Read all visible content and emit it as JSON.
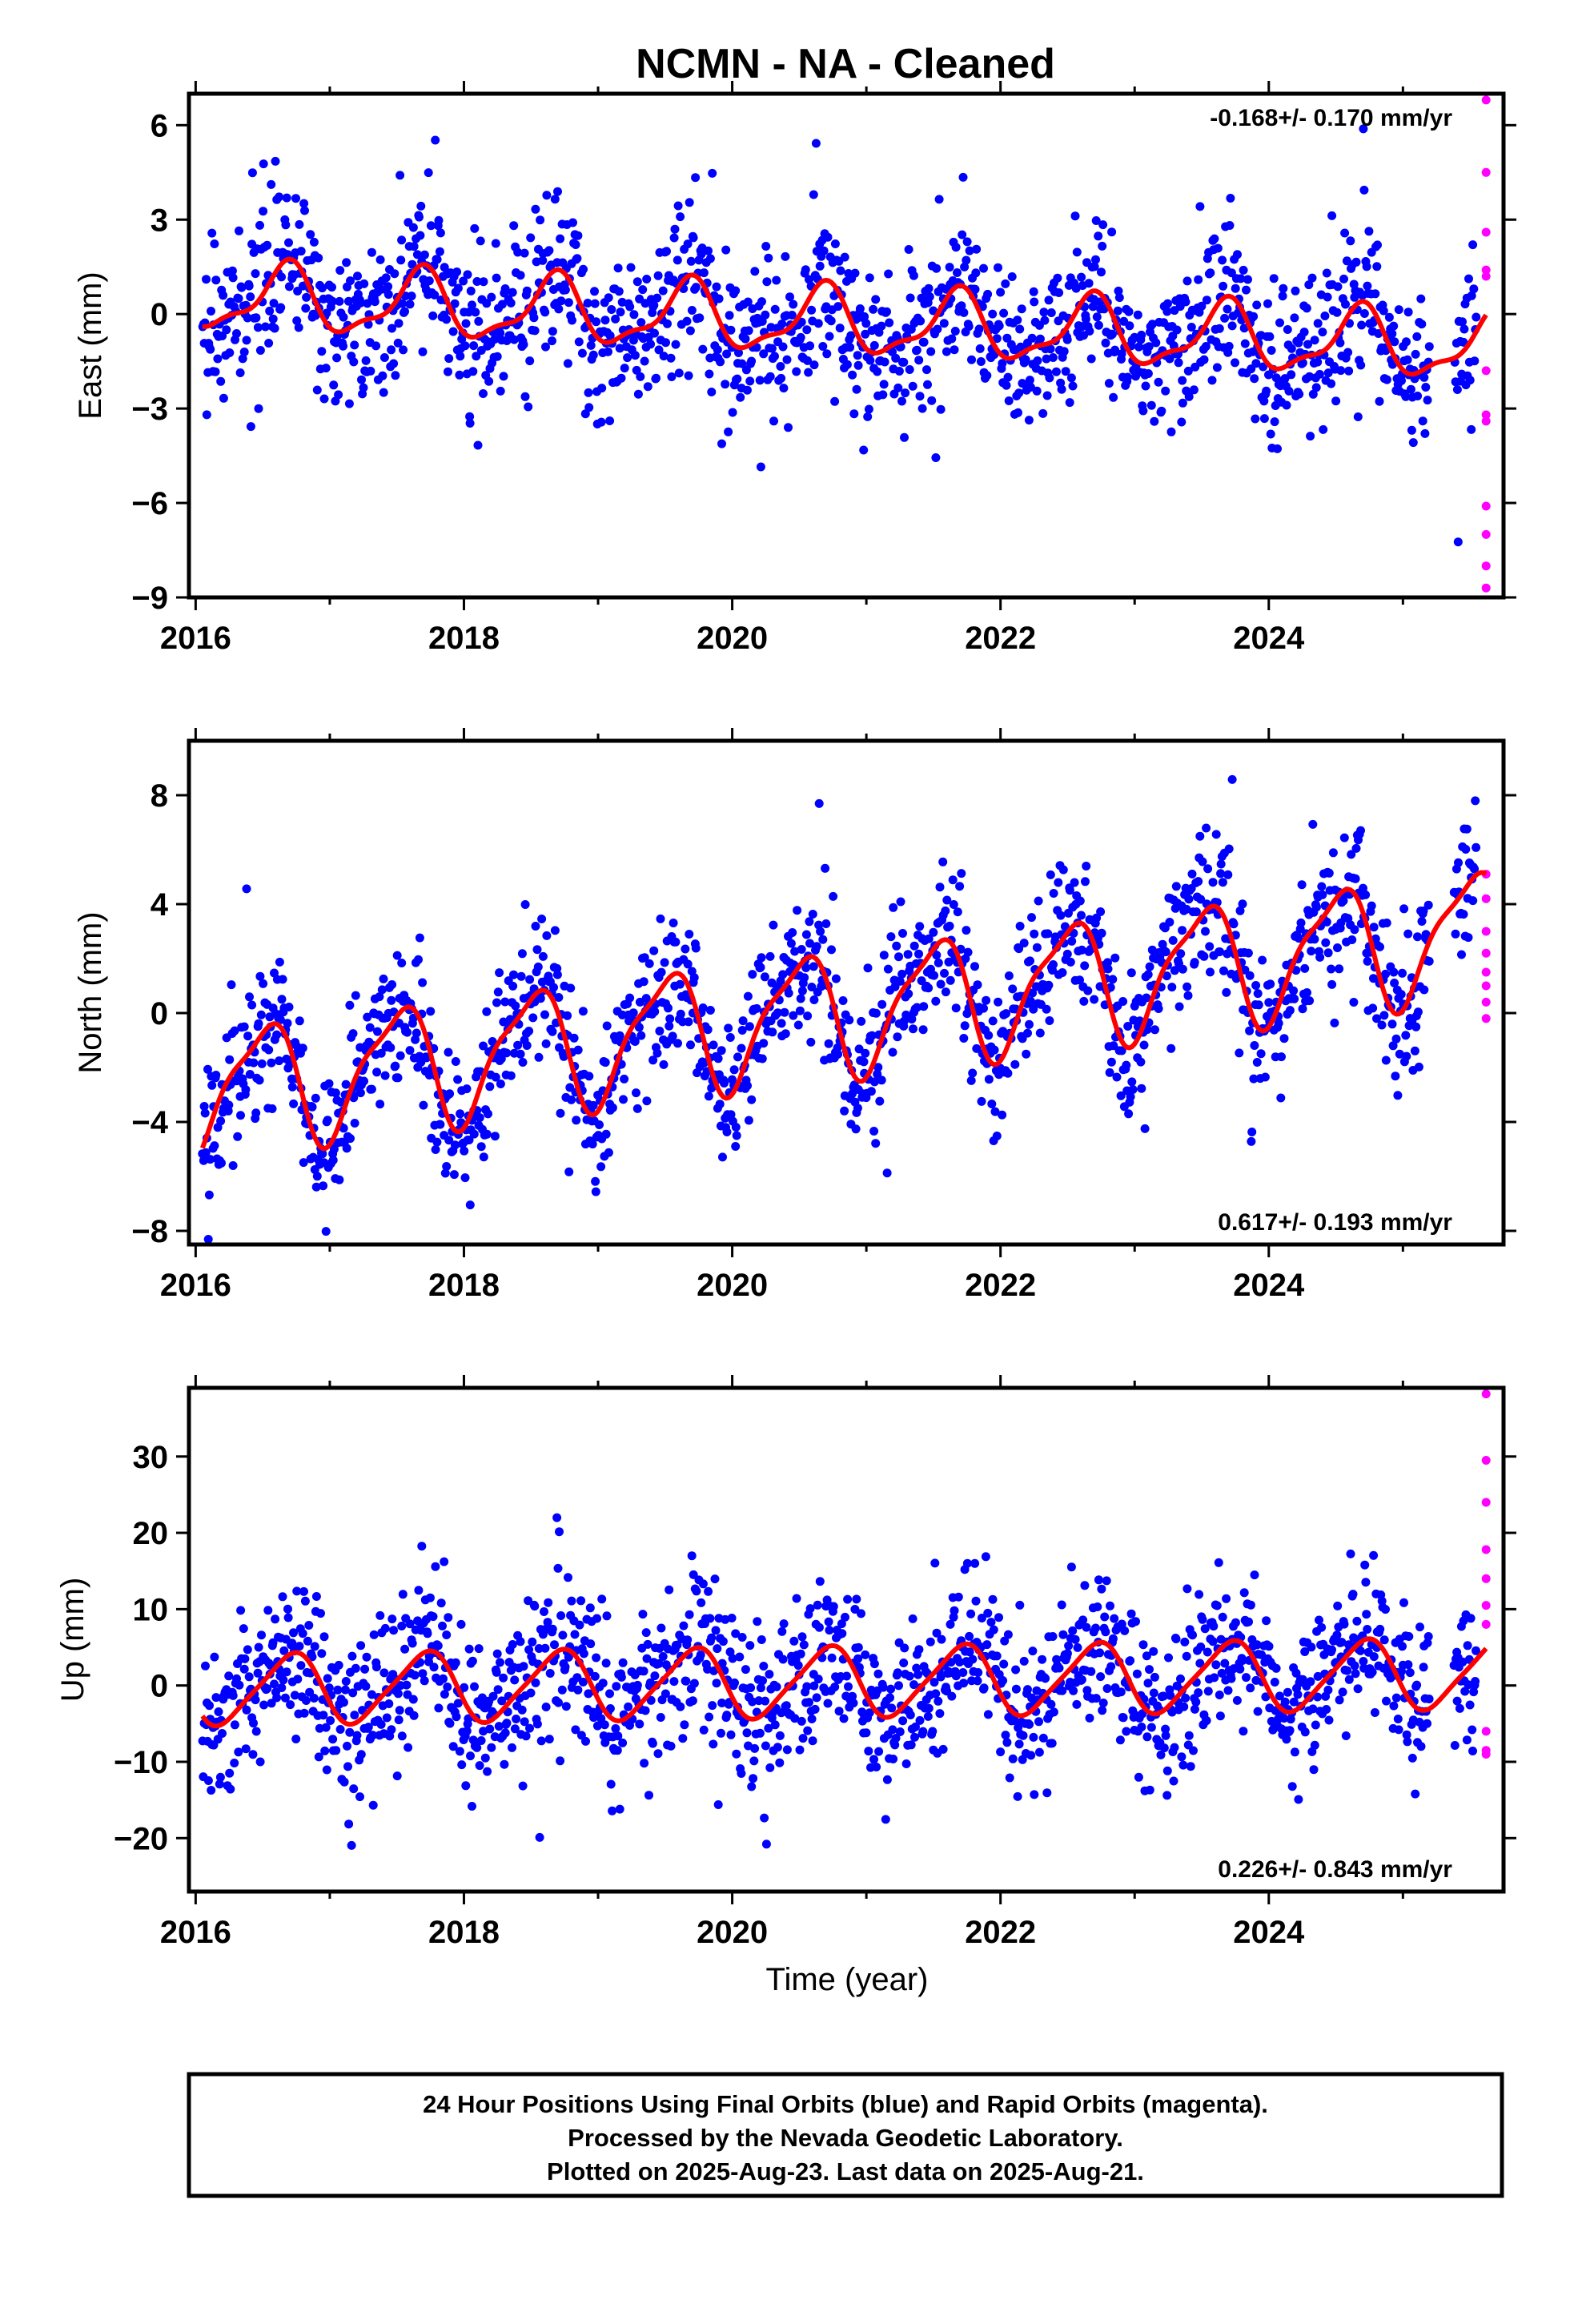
{
  "title": "NCMN  - NA - Cleaned",
  "x_axis_title": "Time (year)",
  "footer": {
    "line1": "24 Hour Positions Using Final Orbits (blue) and Rapid Orbits (magenta).",
    "line2": "Processed by the Nevada Geodetic Laboratory.",
    "line3": "Plotted on 2025-Aug-23. Last data on 2025-Aug-21."
  },
  "colors": {
    "final_orbits": "#0000ff",
    "rapid_orbits": "#ff00ff",
    "fit_curve": "#ff0000"
  },
  "chart_data": [
    {
      "type": "scatter",
      "ylabel": "East (mm)",
      "xlim": [
        2015.95,
        2025.75
      ],
      "ylim": [
        -9,
        7
      ],
      "xticks": [
        2016,
        2018,
        2020,
        2022,
        2024
      ],
      "xtick_labels": [
        "2016",
        "2018",
        "2020",
        "2022",
        "2024"
      ],
      "yticks": [
        -9,
        -6,
        -3,
        0,
        3,
        6
      ],
      "ytick_labels": [
        "−9",
        "−6",
        "−3",
        "0",
        "3",
        "6"
      ],
      "rate_text": "-0.168+/- 0.170 mm/yr",
      "rate_position": "top-right",
      "model": {
        "offset": 0.55,
        "trend": -0.168,
        "annual_amp": 1.0,
        "annual_phase": 0.42,
        "semiannual_amp": 0.35,
        "semiannual_phase": 0.1,
        "scatter": 1.25
      },
      "final_orbits": {
        "x_range": [
          2016.05,
          2025.55
        ],
        "count": 1500
      },
      "gap": [
        2025.2,
        2025.38
      ],
      "rapid_orbits": {
        "x": [
          2025.62,
          2025.62,
          2025.62,
          2025.62,
          2025.62,
          2025.62,
          2025.62,
          2025.62,
          2025.62,
          2025.62,
          2025.62,
          2025.62
        ],
        "y": [
          6.8,
          4.5,
          2.6,
          1.4,
          1.2,
          -1.8,
          -3.2,
          -3.4,
          -6.1,
          -7.0,
          -8.0,
          -8.7
        ]
      },
      "fit": {
        "x_range": [
          2016.05,
          2025.62
        ],
        "lw": 3
      }
    },
    {
      "type": "scatter",
      "ylabel": "North (mm)",
      "xlim": [
        2015.95,
        2025.75
      ],
      "ylim": [
        -8.5,
        10
      ],
      "xticks": [
        2016,
        2018,
        2020,
        2022,
        2024
      ],
      "xtick_labels": [
        "2016",
        "2018",
        "2020",
        "2022",
        "2024"
      ],
      "yticks": [
        -8,
        -4,
        0,
        4,
        8
      ],
      "ytick_labels": [
        "−8",
        "−4",
        "0",
        "4",
        "8"
      ],
      "rate_text": "0.617+/- 0.193 mm/yr",
      "rate_position": "bottom-right",
      "model": {
        "offset": -2.9,
        "trend": 0.617,
        "annual_amp": 2.2,
        "annual_phase": 0.25,
        "semiannual_amp": 0.6,
        "semiannual_phase": 0.05,
        "scatter": 1.35
      },
      "final_orbits": {
        "x_range": [
          2016.05,
          2025.55
        ],
        "count": 1500
      },
      "gap": [
        2025.2,
        2025.38
      ],
      "rapid_orbits": {
        "x": [
          2025.62,
          2025.62,
          2025.62,
          2025.62,
          2025.62,
          2025.62,
          2025.62,
          2025.62
        ],
        "y": [
          5.1,
          4.2,
          3.0,
          2.2,
          1.5,
          1.0,
          0.4,
          -0.2
        ]
      },
      "fit": {
        "x_range": [
          2016.05,
          2025.62
        ],
        "lw": 3
      }
    },
    {
      "type": "scatter",
      "ylabel": "Up (mm)",
      "xlim": [
        2015.95,
        2025.75
      ],
      "ylim": [
        -27,
        39
      ],
      "xticks": [
        2016,
        2018,
        2020,
        2022,
        2024
      ],
      "xtick_labels": [
        "2016",
        "2018",
        "2020",
        "2022",
        "2024"
      ],
      "yticks": [
        -20,
        -10,
        0,
        10,
        20,
        30
      ],
      "ytick_labels": [
        "−20",
        "−10",
        "0",
        "10",
        "20",
        "30"
      ],
      "rate_text": "0.226+/- 0.843 mm/yr",
      "rate_position": "bottom-right",
      "model": {
        "offset": -0.6,
        "trend": 0.226,
        "annual_amp": 4.5,
        "annual_phase": 0.45,
        "semiannual_amp": 0.8,
        "semiannual_phase": 0.2,
        "scatter": 5.2
      },
      "final_orbits": {
        "x_range": [
          2016.05,
          2025.55
        ],
        "count": 1500
      },
      "gap": [
        2025.2,
        2025.38
      ],
      "rapid_orbits": {
        "x": [
          2025.62,
          2025.62,
          2025.62,
          2025.62,
          2025.62,
          2025.62,
          2025.62,
          2025.62,
          2025.62,
          2025.62
        ],
        "y": [
          38.2,
          29.5,
          24.0,
          17.8,
          14.0,
          10.5,
          8.0,
          -6.0,
          -8.5,
          -9.0
        ]
      },
      "fit": {
        "x_range": [
          2016.05,
          2025.62
        ],
        "lw": 3
      }
    }
  ]
}
